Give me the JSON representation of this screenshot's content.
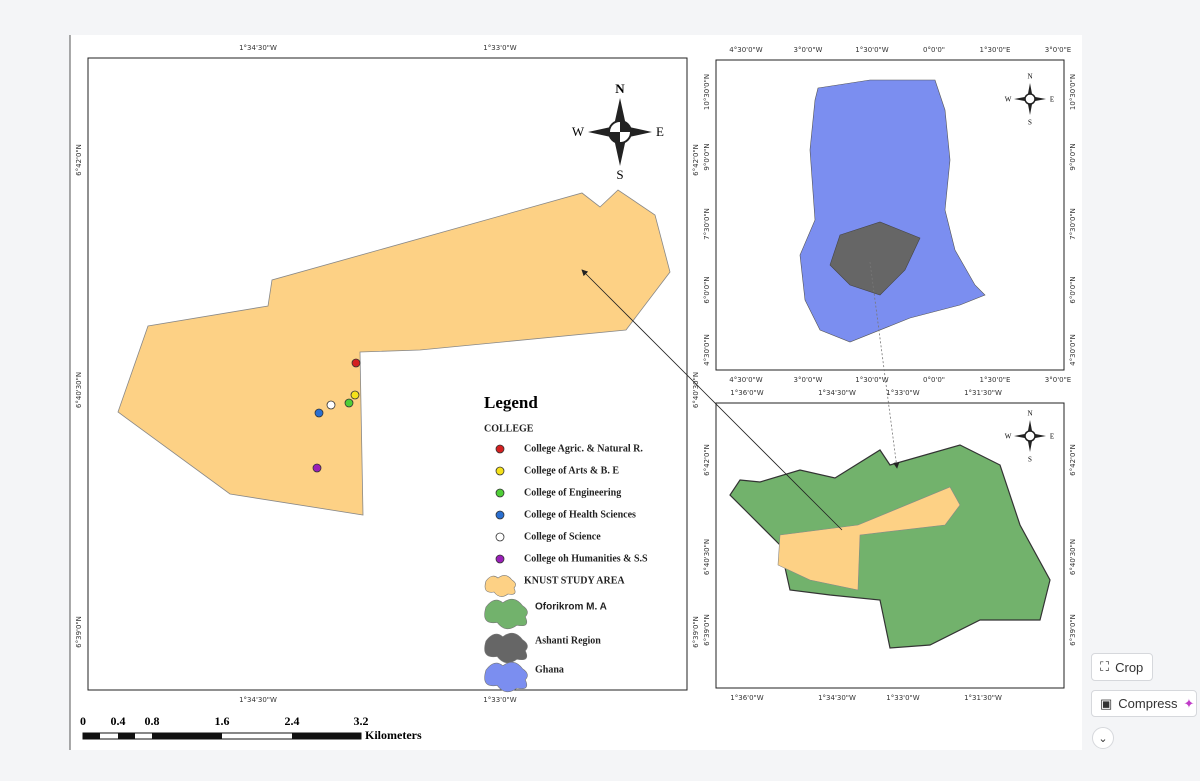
{
  "main_map": {
    "x_labels": [
      "1°34'30\"W",
      "1°33'0\"W"
    ],
    "y_labels": [
      "6°42'0\"N",
      "6°40'30\"N",
      "6°39'0\"N"
    ],
    "compass": {
      "n": "N",
      "s": "S",
      "w": "W",
      "e": "E"
    },
    "legend": {
      "title": "Legend",
      "group": "COLLEGE",
      "items": [
        "College Agric. & Natural R.",
        "College of Arts & B. E",
        "College of Engineering",
        "College of Health Sciences",
        "College of Science",
        "College oh Humanities & S.S",
        "KNUST STUDY AREA",
        "Oforikrom M. A",
        "Ashanti Region",
        "Ghana"
      ]
    },
    "scale": {
      "labels": [
        "0",
        "0.4",
        "0.8",
        "1.6",
        "2.4",
        "3.2"
      ],
      "unit": "Kilometers"
    }
  },
  "ghana_map": {
    "x_labels": [
      "4°30'0\"W",
      "3°0'0\"W",
      "1°30'0\"W",
      "0°0'0\"",
      "1°30'0\"E",
      "3°0'0\"E"
    ],
    "y_labels": [
      "10°30'0\"N",
      "9°0'0\"N",
      "7°30'0\"N",
      "6°0'0\"N",
      "4°30'0\"N"
    ]
  },
  "oforikrom_map": {
    "x_labels": [
      "1°36'0\"W",
      "1°34'30\"W",
      "1°33'0\"W",
      "1°31'30\"W"
    ],
    "y_labels": [
      "6°42'0\"N",
      "6°40'30\"N",
      "6°39'0\"N"
    ]
  },
  "toolbar": {
    "crop": "Crop",
    "compress": "Compress"
  }
}
